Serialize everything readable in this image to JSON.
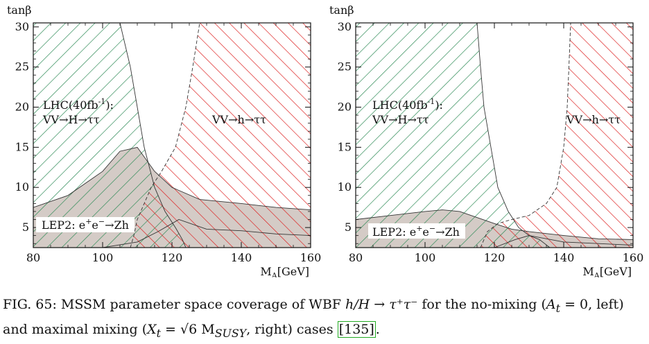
{
  "chart_data": [
    {
      "type": "area",
      "xlabel": "M_A[GeV]",
      "ylabel": "tanβ",
      "xlim": [
        80,
        160
      ],
      "ylim": [
        2.5,
        30.5
      ],
      "xticks": [
        80,
        100,
        120,
        140,
        160
      ],
      "yticks": [
        5,
        10,
        15,
        20,
        25,
        30
      ],
      "grid": false,
      "regions": [
        {
          "name": "LHC(40fb⁻¹): VV→H→ττ",
          "label_line1": "LHC(40fb",
          "label_sup": "-1",
          "label_line1_end": "):",
          "label_line2": "VV→H→ττ",
          "color": "#2e8b57",
          "hatch": "diagonal-down",
          "boundary": [
            [
              105,
              30.5
            ],
            [
              108,
              25
            ],
            [
              110,
              20
            ],
            [
              112,
              15
            ],
            [
              115,
              10
            ],
            [
              118,
              7
            ],
            [
              121,
              5
            ],
            [
              123,
              3.5
            ],
            [
              124,
              2.5
            ]
          ]
        },
        {
          "name": "VV→h→ττ",
          "label": "VV→h→ττ",
          "color": "#dd2222",
          "hatch": "diagonal-up",
          "boundary": [
            [
              108,
              2.5
            ],
            [
              109,
              4
            ],
            [
              110,
              6
            ],
            [
              112,
              8
            ],
            [
              114,
              10
            ],
            [
              117,
              12
            ],
            [
              121,
              15
            ],
            [
              124,
              20
            ],
            [
              126,
              25
            ],
            [
              128,
              30.5
            ]
          ]
        },
        {
          "name": "LEP2: e⁺e⁻→Zh",
          "label": "LEP2: e",
          "label_sup1": "+",
          "label_mid": "e",
          "label_sup2": "−",
          "label_end": "→Zh",
          "color": "#d4cbc6",
          "boundary": [
            [
              80,
              7.5
            ],
            [
              90,
              9
            ],
            [
              100,
              12
            ],
            [
              105,
              14.5
            ],
            [
              110,
              15
            ],
            [
              115,
              12
            ],
            [
              120,
              10
            ],
            [
              128,
              8.5
            ],
            [
              140,
              8
            ],
            [
              150,
              7.5
            ],
            [
              160,
              7.2
            ]
          ],
          "lower_boundary": [
            [
              80,
              2.5
            ],
            [
              100,
              2.5
            ],
            [
              110,
              3.2
            ],
            [
              116,
              4.5
            ],
            [
              120,
              5.5
            ],
            [
              122,
              6
            ],
            [
              130,
              4.8
            ],
            [
              140,
              4.6
            ],
            [
              150,
              4.2
            ],
            [
              160,
              4
            ]
          ]
        }
      ]
    },
    {
      "type": "area",
      "xlabel": "M_A[GeV]",
      "ylabel": "tanβ",
      "xlim": [
        80,
        160
      ],
      "ylim": [
        2.5,
        30.5
      ],
      "xticks": [
        80,
        100,
        120,
        140,
        160
      ],
      "yticks": [
        5,
        10,
        15,
        20,
        25,
        30
      ],
      "grid": false,
      "regions": [
        {
          "name": "LHC(40fb⁻¹): VV→H→ττ",
          "label_line1": "LHC(40fb",
          "label_sup": "-1",
          "label_line1_end": "):",
          "label_line2": "VV→H→ττ",
          "color": "#2e8b57",
          "hatch": "diagonal-down",
          "boundary": [
            [
              115,
              30.5
            ],
            [
              116,
              25
            ],
            [
              117,
              20
            ],
            [
              119,
              15
            ],
            [
              121,
              10
            ],
            [
              124,
              7
            ],
            [
              127,
              5
            ],
            [
              130,
              4
            ],
            [
              133,
              3.5
            ],
            [
              136,
              2.5
            ]
          ]
        },
        {
          "name": "VV→h→ττ",
          "label": "VV→h→ττ",
          "color": "#dd2222",
          "hatch": "diagonal-up",
          "boundary": [
            [
              116,
              2.5
            ],
            [
              117,
              3.5
            ],
            [
              118,
              4.5
            ],
            [
              121,
              5.5
            ],
            [
              125,
              6
            ],
            [
              130,
              6.5
            ],
            [
              135,
              8
            ],
            [
              138,
              10
            ],
            [
              140,
              15
            ],
            [
              141,
              20
            ],
            [
              141.5,
              25
            ],
            [
              142,
              30.5
            ]
          ]
        },
        {
          "name": "LEP2: e⁺e⁻→Zh",
          "label": "LEP2: e",
          "label_sup1": "+",
          "label_mid": "e",
          "label_sup2": "−",
          "label_end": "→Zh",
          "color": "#d4cbc6",
          "boundary": [
            [
              80,
              6
            ],
            [
              90,
              6.5
            ],
            [
              100,
              7
            ],
            [
              105,
              7.2
            ],
            [
              110,
              7
            ],
            [
              120,
              5.5
            ],
            [
              125,
              4.8
            ],
            [
              130,
              4.5
            ],
            [
              140,
              4
            ],
            [
              150,
              3.6
            ],
            [
              160,
              3.5
            ]
          ],
          "lower_boundary": [
            [
              80,
              2.5
            ],
            [
              120,
              2.5
            ],
            [
              126,
              3.5
            ],
            [
              130,
              4
            ],
            [
              140,
              3.2
            ],
            [
              150,
              3
            ],
            [
              160,
              2.8
            ]
          ]
        }
      ]
    }
  ],
  "caption": {
    "prefix": "FIG. 65: MSSM parameter space coverage of WBF ",
    "math1": "h/H → τ⁺τ⁻",
    "mid1": " for the no-mixing (",
    "math2": "A",
    "math2_sub": "t",
    "math2_end": " = 0",
    "mid2": ", left)",
    "line2_prefix": "and maximal mixing (",
    "math3": "X",
    "math3_sub": "t",
    "math3_mid": " = √6 M",
    "math3_sub2": "SUSY",
    "line2_mid": ", right) cases ",
    "ref": "[135]",
    "line2_end": "."
  }
}
